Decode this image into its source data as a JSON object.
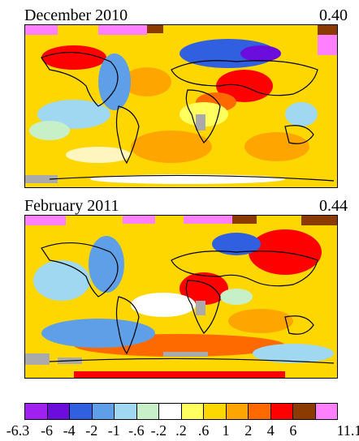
{
  "panels": [
    {
      "month": "December 2010",
      "value": "0.40"
    },
    {
      "month": "February 2011",
      "value": "0.44"
    }
  ],
  "legend": {
    "colors": [
      "#a020f0",
      "#6a0ddd",
      "#3060e0",
      "#5f9fe8",
      "#9fd8f0",
      "#c8f0c8",
      "#ffffff",
      "#ffff60",
      "#ffd700",
      "#ffa500",
      "#ff6a00",
      "#ff0000",
      "#8b3a00",
      "#ff80ff"
    ],
    "labels": [
      "-6.3",
      "-6",
      "-4",
      "-2",
      "-1",
      "-.6",
      "-.2",
      ".2",
      ".6",
      "1",
      "2",
      "4",
      "6",
      "11.1"
    ]
  }
}
